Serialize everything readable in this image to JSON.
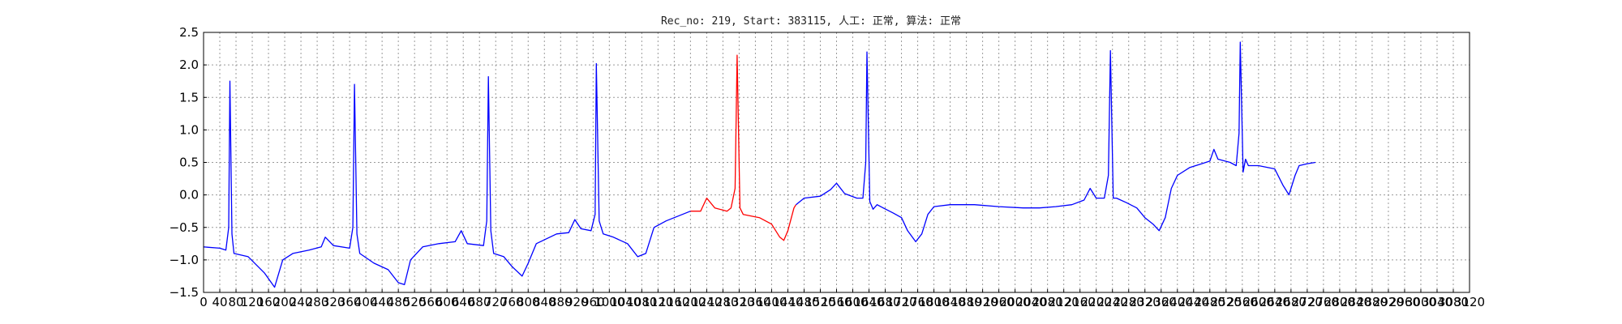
{
  "chart_data": {
    "type": "line",
    "title": "Rec_no: 219, Start: 383115, 人工: 正常, 算法: 正常",
    "xlabel": "",
    "ylabel": "",
    "xlim": [
      0,
      3120
    ],
    "ylim": [
      -1.5,
      2.5
    ],
    "grid": true,
    "yticks": [
      -1.5,
      -1.0,
      -0.5,
      0.0,
      0.5,
      1.0,
      1.5,
      2.0,
      2.5
    ],
    "ytick_labels": [
      "−1.5",
      "−1.0",
      "−0.5",
      "0.0",
      "0.5",
      "1.0",
      "1.5",
      "2.0",
      "2.5"
    ],
    "xticks": [
      0,
      40,
      80,
      120,
      160,
      200,
      240,
      280,
      320,
      360,
      400,
      440,
      480,
      520,
      560,
      600,
      640,
      680,
      720,
      760,
      800,
      840,
      880,
      920,
      960,
      1000,
      1040,
      1080,
      1120,
      1160,
      1200,
      1240,
      1280,
      1320,
      1360,
      1400,
      1440,
      1480,
      1520,
      1560,
      1600,
      1640,
      1680,
      1720,
      1760,
      1800,
      1840,
      1880,
      1920,
      1960,
      2000,
      2040,
      2080,
      2120,
      2160,
      2200,
      2240,
      2280,
      2320,
      2360,
      2400,
      2440,
      2480,
      2520,
      2560,
      2600,
      2640,
      2680,
      2720,
      2760,
      2800,
      2840,
      2880,
      2920,
      2960,
      3000,
      3040,
      3080,
      3120
    ],
    "series": [
      {
        "color": "#0000ff",
        "values": [
          [
            0,
            -0.8
          ],
          [
            40,
            -0.82
          ],
          [
            55,
            -0.85
          ],
          [
            62,
            -0.5
          ],
          [
            65,
            1.75
          ],
          [
            70,
            -0.6
          ],
          [
            75,
            -0.9
          ],
          [
            110,
            -0.95
          ],
          [
            150,
            -1.2
          ],
          [
            175,
            -1.42
          ],
          [
            195,
            -1.0
          ],
          [
            220,
            -0.9
          ],
          [
            260,
            -0.85
          ],
          [
            290,
            -0.8
          ],
          [
            300,
            -0.65
          ],
          [
            320,
            -0.78
          ],
          [
            360,
            -0.82
          ],
          [
            368,
            -0.5
          ],
          [
            372,
            1.7
          ],
          [
            378,
            -0.6
          ],
          [
            385,
            -0.9
          ],
          [
            420,
            -1.05
          ],
          [
            455,
            -1.15
          ],
          [
            480,
            -1.35
          ],
          [
            495,
            -1.38
          ],
          [
            510,
            -1.0
          ],
          [
            540,
            -0.8
          ],
          [
            580,
            -0.75
          ],
          [
            620,
            -0.72
          ],
          [
            635,
            -0.55
          ],
          [
            650,
            -0.75
          ],
          [
            690,
            -0.78
          ],
          [
            698,
            -0.4
          ],
          [
            702,
            1.82
          ],
          [
            708,
            -0.55
          ],
          [
            715,
            -0.9
          ],
          [
            740,
            -0.95
          ],
          [
            760,
            -1.1
          ],
          [
            785,
            -1.25
          ],
          [
            800,
            -1.05
          ],
          [
            820,
            -0.75
          ],
          [
            870,
            -0.6
          ],
          [
            900,
            -0.58
          ],
          [
            915,
            -0.38
          ],
          [
            930,
            -0.52
          ],
          [
            955,
            -0.55
          ],
          [
            965,
            -0.3
          ],
          [
            968,
            2.02
          ],
          [
            975,
            -0.4
          ],
          [
            985,
            -0.6
          ],
          [
            1010,
            -0.65
          ],
          [
            1045,
            -0.75
          ],
          [
            1070,
            -0.95
          ],
          [
            1090,
            -0.9
          ],
          [
            1110,
            -0.5
          ],
          [
            1140,
            -0.4
          ],
          [
            1180,
            -0.3
          ],
          [
            1200,
            -0.25
          ]
        ]
      },
      {
        "color": "#ff0000",
        "values": [
          [
            1200,
            -0.25
          ],
          [
            1225,
            -0.25
          ],
          [
            1240,
            -0.05
          ],
          [
            1260,
            -0.2
          ],
          [
            1290,
            -0.25
          ],
          [
            1300,
            -0.2
          ],
          [
            1310,
            0.1
          ],
          [
            1315,
            2.15
          ],
          [
            1322,
            -0.2
          ],
          [
            1330,
            -0.3
          ],
          [
            1370,
            -0.35
          ],
          [
            1400,
            -0.45
          ],
          [
            1420,
            -0.65
          ],
          [
            1430,
            -0.7
          ],
          [
            1440,
            -0.55
          ],
          [
            1455,
            -0.2
          ],
          [
            1460,
            -0.15
          ]
        ]
      },
      {
        "color": "#0000ff",
        "values": [
          [
            1460,
            -0.15
          ],
          [
            1480,
            -0.05
          ],
          [
            1520,
            -0.02
          ],
          [
            1545,
            0.08
          ],
          [
            1560,
            0.18
          ],
          [
            1580,
            0.02
          ],
          [
            1610,
            -0.05
          ],
          [
            1625,
            -0.05
          ],
          [
            1632,
            0.5
          ],
          [
            1635,
            2.2
          ],
          [
            1642,
            -0.1
          ],
          [
            1650,
            -0.22
          ],
          [
            1660,
            -0.15
          ],
          [
            1675,
            -0.2
          ],
          [
            1700,
            -0.28
          ],
          [
            1720,
            -0.35
          ],
          [
            1735,
            -0.55
          ],
          [
            1755,
            -0.72
          ],
          [
            1770,
            -0.6
          ],
          [
            1785,
            -0.3
          ],
          [
            1800,
            -0.18
          ],
          [
            1840,
            -0.15
          ],
          [
            1900,
            -0.15
          ],
          [
            1960,
            -0.18
          ],
          [
            2020,
            -0.2
          ],
          [
            2060,
            -0.2
          ],
          [
            2100,
            -0.18
          ],
          [
            2140,
            -0.15
          ],
          [
            2170,
            -0.08
          ],
          [
            2185,
            0.1
          ],
          [
            2200,
            -0.05
          ],
          [
            2220,
            -0.05
          ],
          [
            2230,
            0.3
          ],
          [
            2235,
            2.22
          ],
          [
            2242,
            -0.05
          ],
          [
            2250,
            -0.05
          ],
          [
            2275,
            -0.12
          ],
          [
            2300,
            -0.2
          ],
          [
            2320,
            -0.35
          ],
          [
            2340,
            -0.45
          ],
          [
            2355,
            -0.55
          ],
          [
            2370,
            -0.35
          ],
          [
            2385,
            0.1
          ],
          [
            2400,
            0.3
          ],
          [
            2430,
            0.42
          ],
          [
            2460,
            0.48
          ],
          [
            2480,
            0.52
          ],
          [
            2490,
            0.7
          ],
          [
            2500,
            0.55
          ],
          [
            2530,
            0.5
          ],
          [
            2545,
            0.45
          ],
          [
            2552,
            0.95
          ],
          [
            2555,
            2.35
          ],
          [
            2562,
            0.35
          ],
          [
            2568,
            0.55
          ],
          [
            2575,
            0.45
          ],
          [
            2600,
            0.45
          ],
          [
            2640,
            0.4
          ],
          [
            2660,
            0.15
          ],
          [
            2675,
            0.0
          ],
          [
            2690,
            0.3
          ],
          [
            2700,
            0.45
          ],
          [
            2720,
            0.48
          ],
          [
            2740,
            0.5
          ]
        ]
      }
    ]
  }
}
